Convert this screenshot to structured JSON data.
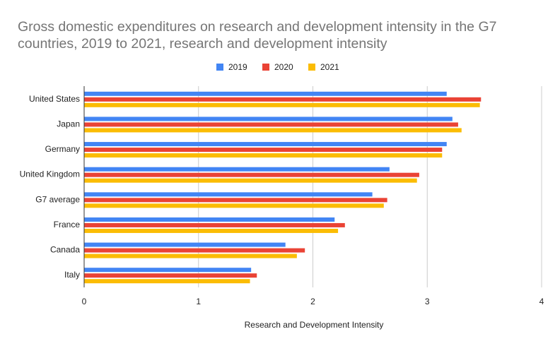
{
  "title_lines": [
    "Gross domestic expenditures on research and development intensity in the G7",
    "countries, 2019 to 2021, research and development intensity"
  ],
  "chart_data": {
    "type": "bar",
    "orientation": "horizontal",
    "title": "Gross domestic expenditures on research and development intensity in the G7 countries, 2019 to 2021, research and development intensity",
    "categories": [
      "United States",
      "Japan",
      "Germany",
      "United Kingdom",
      "G7 average",
      "France",
      "Canada",
      "Italy"
    ],
    "series": [
      {
        "name": "2019",
        "color": "#4285f4",
        "values": [
          3.17,
          3.22,
          3.17,
          2.67,
          2.52,
          2.19,
          1.76,
          1.46
        ]
      },
      {
        "name": "2020",
        "color": "#ea4335",
        "values": [
          3.47,
          3.27,
          3.13,
          2.93,
          2.65,
          2.28,
          1.93,
          1.51
        ]
      },
      {
        "name": "2021",
        "color": "#fbbc04",
        "values": [
          3.46,
          3.3,
          3.13,
          2.91,
          2.62,
          2.22,
          1.86,
          1.45
        ]
      }
    ],
    "xlabel": "Research and Development Intensity",
    "ylabel": "",
    "xlim": [
      0,
      4
    ],
    "x_ticks": [
      0,
      1,
      2,
      3,
      4
    ],
    "grid": true,
    "legend_position": "top-center"
  }
}
